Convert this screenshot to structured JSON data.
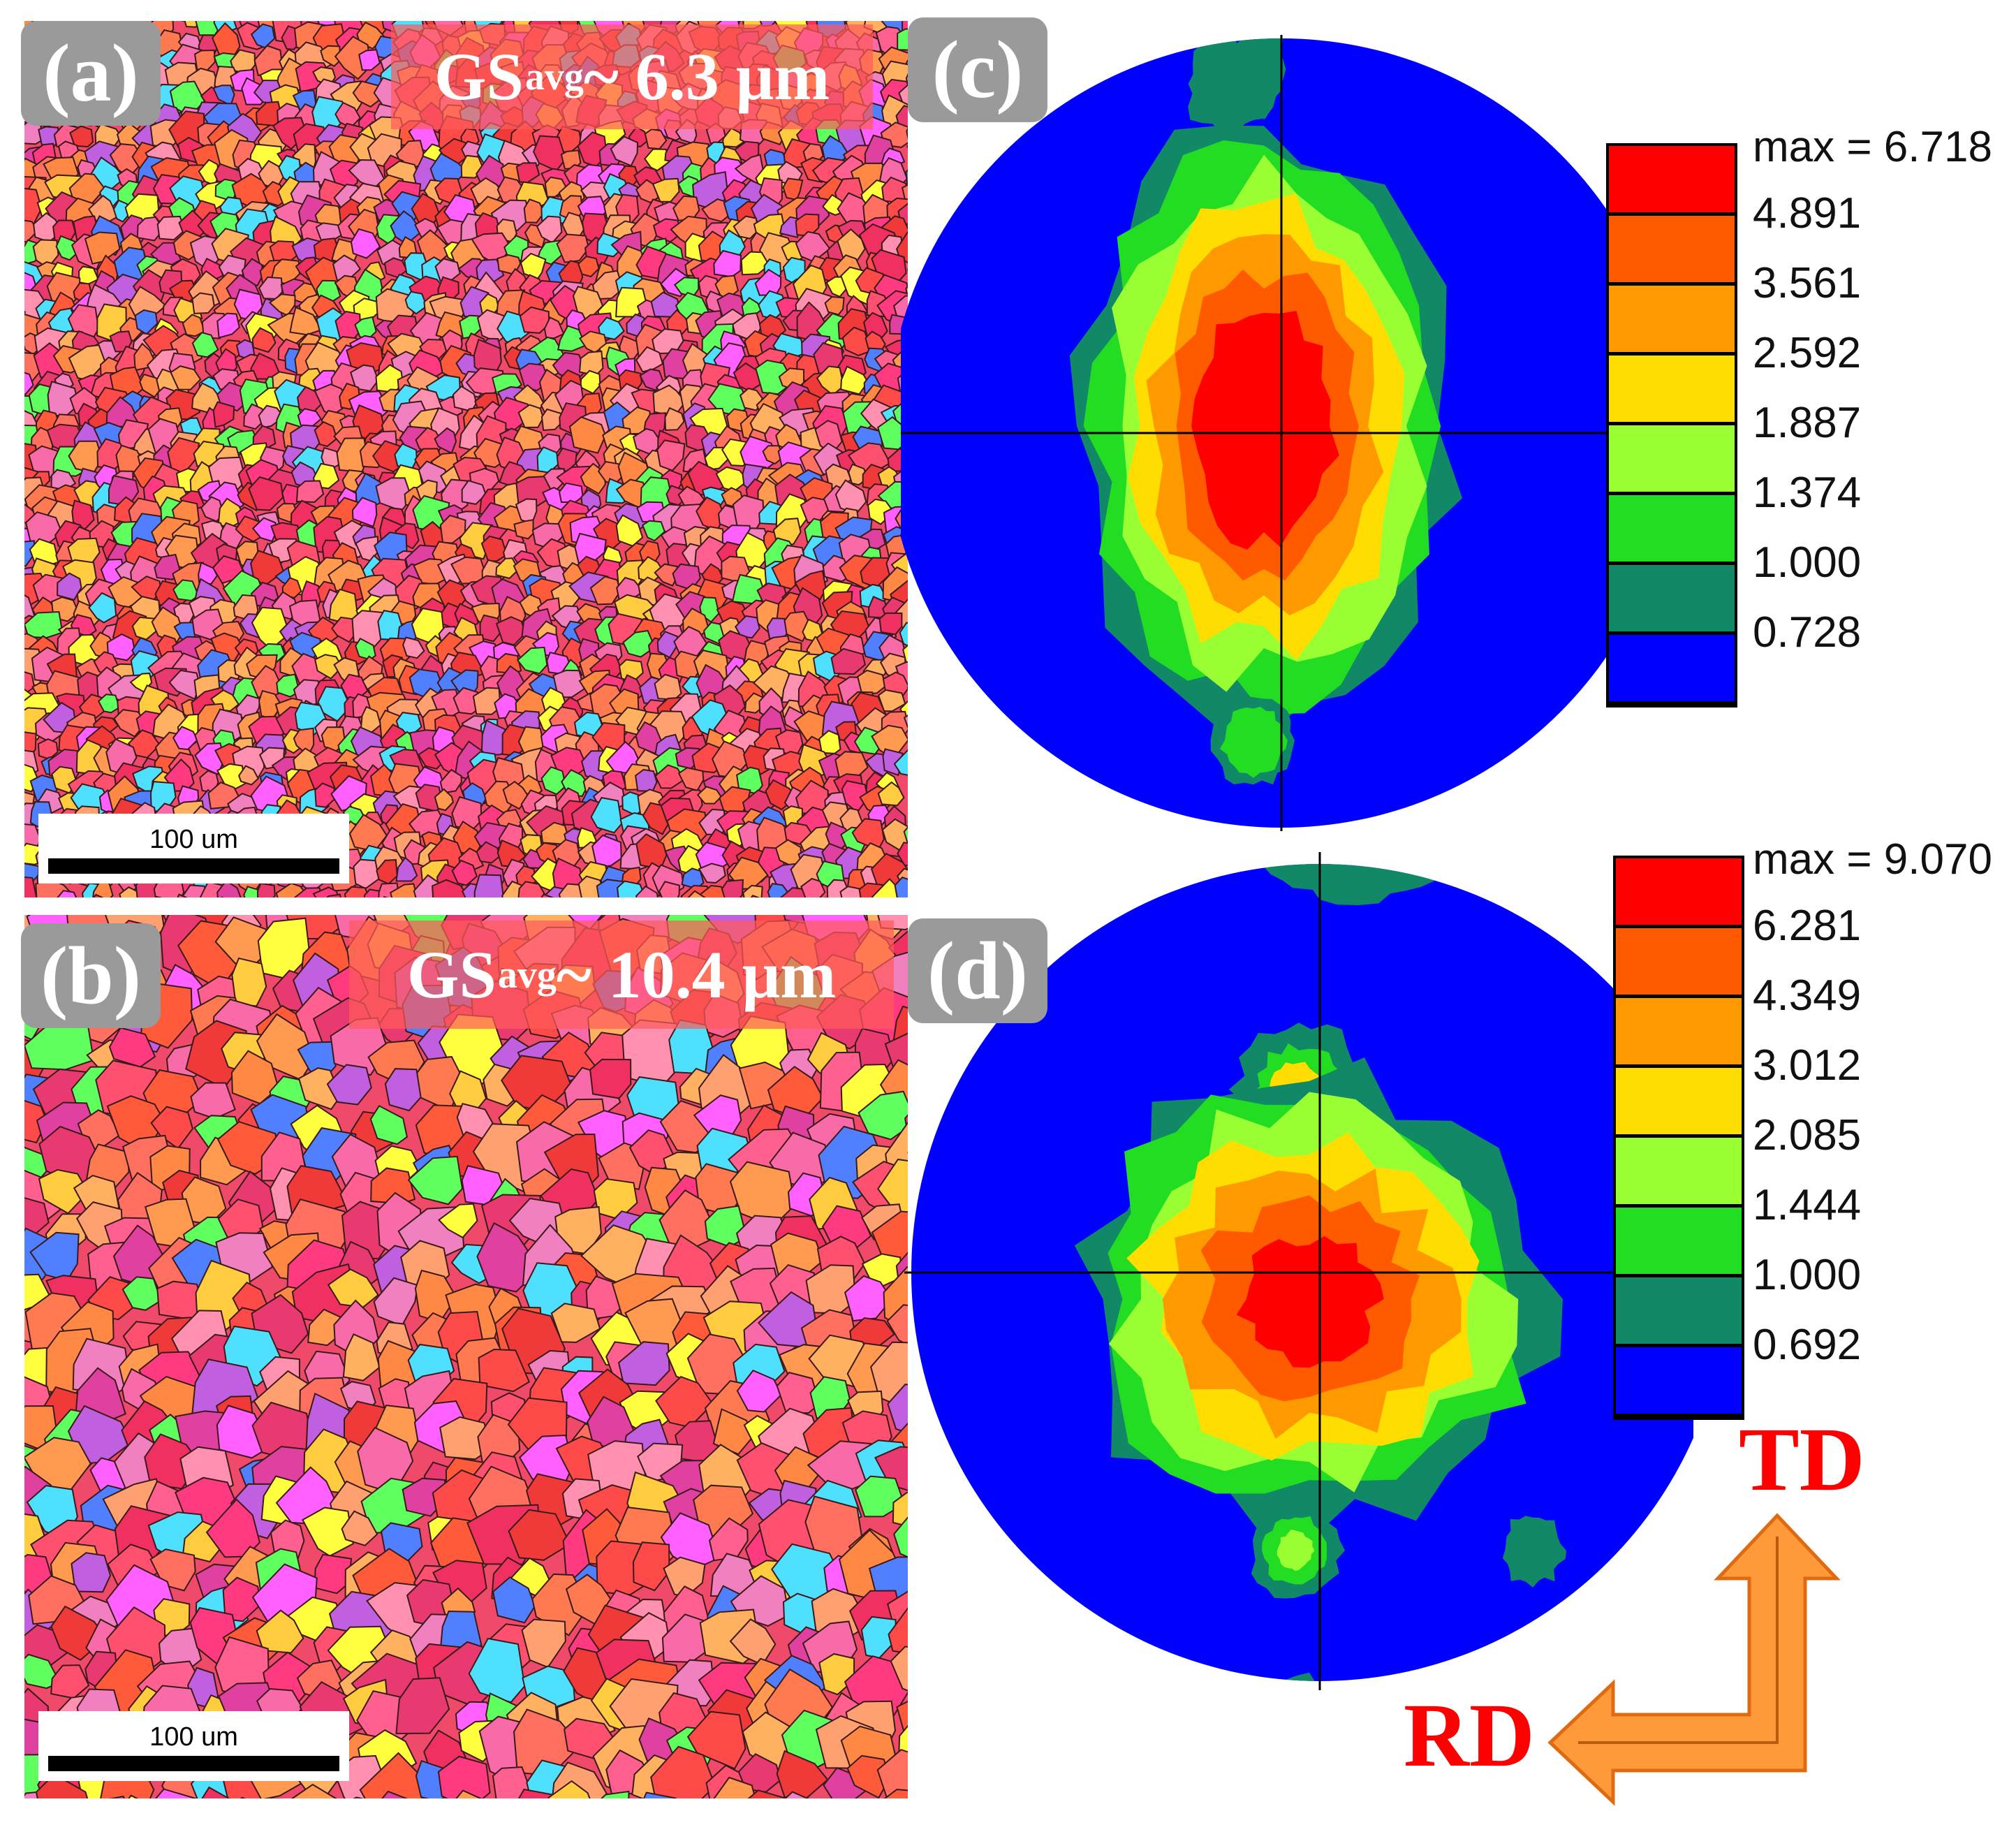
{
  "panels": {
    "a": {
      "label": "(a)",
      "gs_main": "GS",
      "gs_sub": "avg",
      "gs_value": " ~ 6.3 μm",
      "scale_label": "100 um"
    },
    "b": {
      "label": "(b)",
      "gs_main": "GS",
      "gs_sub": "avg",
      "gs_value": " ~ 10.4 μm",
      "scale_label": "100 um"
    },
    "c": {
      "label": "(c)"
    },
    "d": {
      "label": "(d)"
    }
  },
  "legend_c": {
    "max_label": "max = 6.718",
    "levels": [
      "4.891",
      "3.561",
      "2.592",
      "1.887",
      "1.374",
      "1.000",
      "0.728"
    ]
  },
  "legend_d": {
    "max_label": "max = 9.070",
    "levels": [
      "6.281",
      "4.349",
      "3.012",
      "2.085",
      "1.444",
      "1.000",
      "0.692"
    ]
  },
  "colors": {
    "band1": "#ff0000",
    "band2": "#ff5a00",
    "band3": "#ff9900",
    "band4": "#ffdd00",
    "band5": "#99ff33",
    "band6": "#22dd22",
    "band7": "#118866",
    "band8": "#0000ff",
    "arrow": "#ff9a3a",
    "dir_text": "#ff0000"
  },
  "directions": {
    "td": "TD",
    "rd": "RD"
  }
}
